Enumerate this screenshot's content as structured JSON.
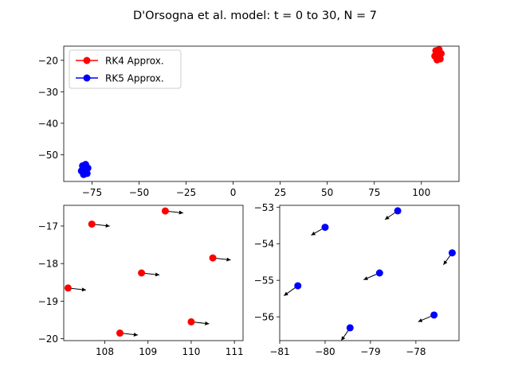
{
  "figure": {
    "title": "D'Orsogna et al. model: t = 0 to 30, N = 7"
  },
  "colors": {
    "rk4": "#ff0000",
    "rk5": "#0000ff",
    "arrow": "#000000"
  },
  "chart_data": [
    {
      "type": "scatter",
      "name": "overview",
      "xlim": [
        -90,
        120
      ],
      "ylim": [
        -58.5,
        -15.5
      ],
      "xticks": [
        -75,
        -50,
        -25,
        0,
        25,
        50,
        75,
        100
      ],
      "xtick_labels": [
        "−75",
        "−50",
        "−25",
        "0",
        "25",
        "50",
        "75",
        "100"
      ],
      "yticks": [
        -20,
        -30,
        -40,
        -50
      ],
      "ytick_labels": [
        "−20",
        "−30",
        "−40",
        "−50"
      ],
      "legend": {
        "placement": "upper-left",
        "entries": [
          {
            "label": "RK4 Approx.",
            "color": "#ff0000"
          },
          {
            "label": "RK5 Approx.",
            "color": "#0000ff"
          }
        ]
      },
      "series": [
        {
          "name": "RK4 Approx.",
          "color": "#ff0000",
          "points": [
            [
              109.4,
              -16.6
            ],
            [
              107.7,
              -16.95
            ],
            [
              110.5,
              -17.85
            ],
            [
              108.85,
              -18.25
            ],
            [
              107.15,
              -18.65
            ],
            [
              110.0,
              -19.55
            ],
            [
              108.35,
              -19.85
            ]
          ]
        },
        {
          "name": "RK5 Approx.",
          "color": "#0000ff",
          "points": [
            [
              -78.4,
              -53.1
            ],
            [
              -80.0,
              -53.55
            ],
            [
              -77.2,
              -54.25
            ],
            [
              -78.8,
              -54.8
            ],
            [
              -80.6,
              -55.15
            ],
            [
              -77.6,
              -55.95
            ],
            [
              -79.45,
              -56.3
            ]
          ]
        }
      ]
    },
    {
      "type": "scatter",
      "name": "rk4-zoom",
      "xlim": [
        107.05,
        111.2
      ],
      "ylim": [
        -20.05,
        -16.45
      ],
      "xticks": [
        108,
        109,
        110,
        111
      ],
      "xtick_labels": [
        "108",
        "109",
        "110",
        "111"
      ],
      "yticks": [
        -17,
        -18,
        -19,
        -20
      ],
      "ytick_labels": [
        "−17",
        "−18",
        "−19",
        "−20"
      ],
      "series": [
        {
          "name": "RK4 Approx.",
          "color": "#ff0000",
          "points": [
            [
              109.4,
              -16.6
            ],
            [
              107.7,
              -16.95
            ],
            [
              110.5,
              -17.85
            ],
            [
              108.85,
              -18.25
            ],
            [
              107.15,
              -18.65
            ],
            [
              110.0,
              -19.55
            ],
            [
              108.35,
              -19.85
            ]
          ],
          "velocity": [
            [
              0.45,
              -0.05
            ],
            [
              0.45,
              -0.05
            ],
            [
              0.45,
              -0.05
            ],
            [
              0.45,
              -0.05
            ],
            [
              0.45,
              -0.05
            ],
            [
              0.45,
              -0.05
            ],
            [
              0.45,
              -0.05
            ]
          ]
        }
      ]
    },
    {
      "type": "scatter",
      "name": "rk5-zoom",
      "xlim": [
        -81.0,
        -77.05
      ],
      "ylim": [
        -56.65,
        -52.95
      ],
      "xticks": [
        -81,
        -80,
        -79,
        -78
      ],
      "xtick_labels": [
        "−81",
        "−80",
        "−79",
        "−78"
      ],
      "yticks": [
        -53,
        -54,
        -55,
        -56
      ],
      "ytick_labels": [
        "−53",
        "−54",
        "−55",
        "−56"
      ],
      "series": [
        {
          "name": "RK5 Approx.",
          "color": "#0000ff",
          "points": [
            [
              -78.4,
              -53.1
            ],
            [
              -80.0,
              -53.55
            ],
            [
              -77.2,
              -54.25
            ],
            [
              -78.8,
              -54.8
            ],
            [
              -80.6,
              -55.15
            ],
            [
              -77.6,
              -55.95
            ],
            [
              -79.45,
              -56.3
            ]
          ],
          "velocity": [
            [
              -0.32,
              -0.22
            ],
            [
              -0.35,
              -0.2
            ],
            [
              -0.22,
              -0.3
            ],
            [
              -0.4,
              -0.17
            ],
            [
              -0.35,
              -0.25
            ],
            [
              -0.4,
              -0.17
            ],
            [
              -0.22,
              -0.32
            ]
          ]
        }
      ]
    }
  ]
}
